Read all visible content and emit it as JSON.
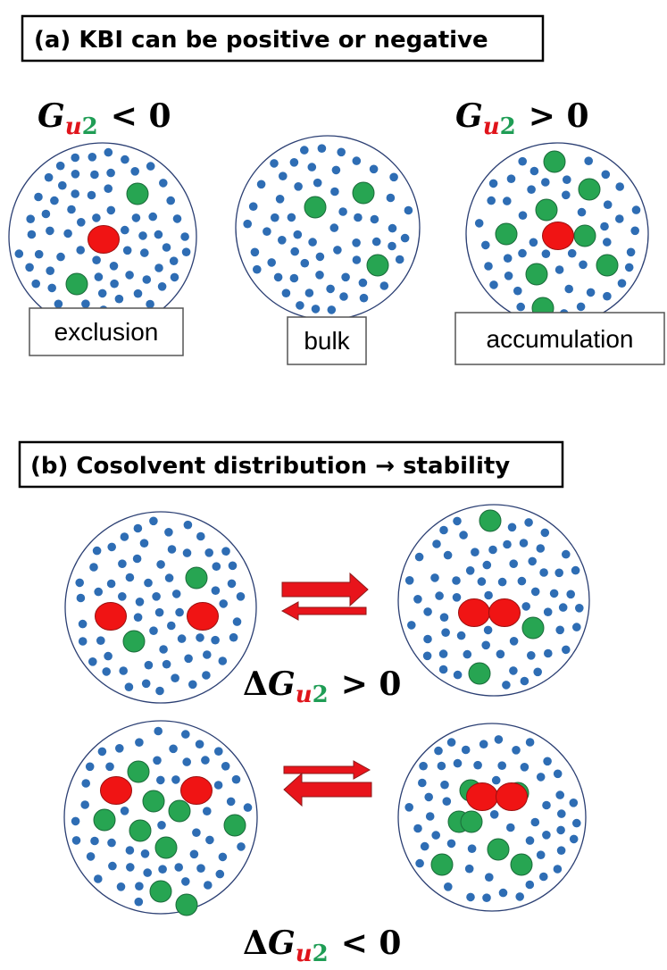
{
  "panel_a": {
    "title": "(a) KBI can be positive or negative",
    "left_label": {
      "symbol": "G",
      "sub_u": "u",
      "sub_2": "2",
      "relation": "< 0"
    },
    "right_label": {
      "symbol": "G",
      "sub_u": "u",
      "sub_2": "2",
      "relation": "> 0"
    },
    "states": [
      "exclusion",
      "bulk",
      "accumulation"
    ]
  },
  "panel_b": {
    "title": "(b) Cosolvent distribution → stability",
    "top_label": {
      "delta": "Δ",
      "symbol": "G",
      "sub_u": "u",
      "sub_2": "2",
      "relation": "> 0"
    },
    "bottom_label": {
      "delta": "Δ",
      "symbol": "G",
      "sub_u": "u",
      "sub_2": "2",
      "relation": "< 0"
    }
  }
}
